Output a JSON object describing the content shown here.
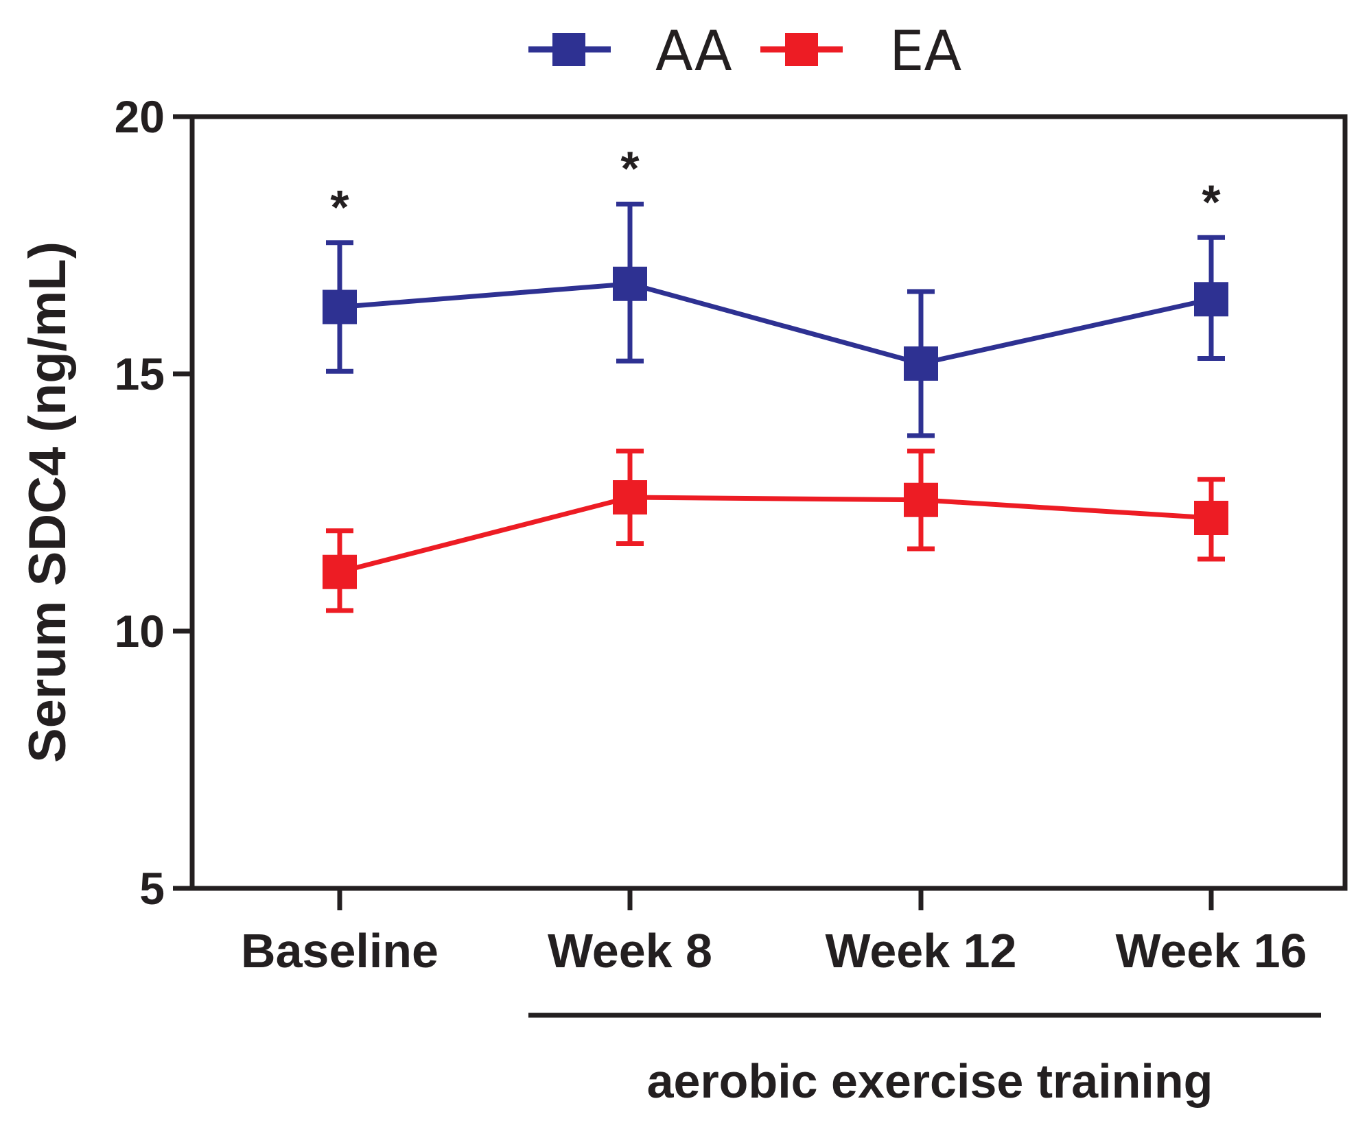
{
  "chart_data": {
    "type": "line",
    "title": "",
    "xlabel": "",
    "ylabel": "Serum SDC4 (ng/mL)",
    "ylim": [
      5,
      20
    ],
    "yticks": [
      5,
      10,
      15,
      20
    ],
    "categories": [
      "Baseline",
      "Week 8",
      "Week 12",
      "Week 16"
    ],
    "series": [
      {
        "name": "AA",
        "color": "#2e3192",
        "values": [
          16.3,
          16.75,
          15.2,
          16.45
        ],
        "err_low": [
          15.05,
          15.25,
          13.8,
          15.3
        ],
        "err_high": [
          17.55,
          18.3,
          16.6,
          17.65
        ]
      },
      {
        "name": "EA",
        "color": "#ed1c24",
        "values": [
          11.15,
          12.6,
          12.55,
          12.2
        ],
        "err_low": [
          10.4,
          11.7,
          11.6,
          11.4
        ],
        "err_high": [
          11.95,
          13.5,
          13.5,
          12.95
        ]
      }
    ],
    "significance": [
      {
        "category": "Baseline",
        "label": "*"
      },
      {
        "category": "Week 8",
        "label": "*"
      },
      {
        "category": "Week 16",
        "label": "*"
      }
    ],
    "bracket": {
      "from": "Week 8",
      "to": "Week 16",
      "label": "aerobic exercise training"
    },
    "legend_position": "top-center",
    "grid": false
  }
}
